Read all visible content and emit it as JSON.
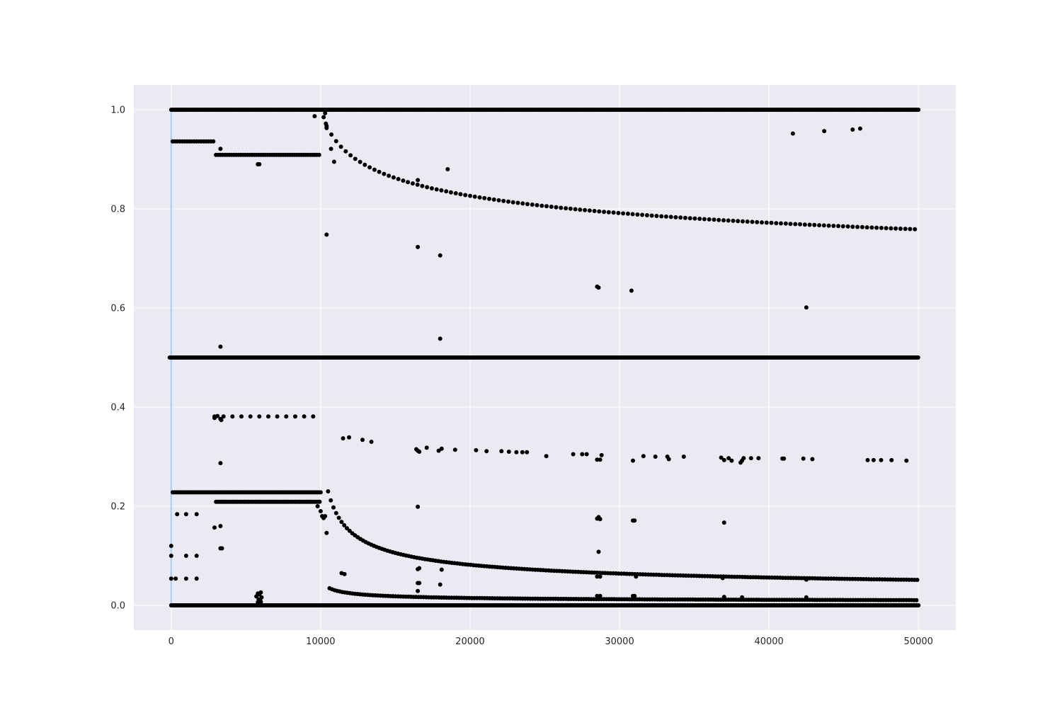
{
  "chart_data": {
    "type": "scatter",
    "title": "",
    "xlabel": "",
    "ylabel": "",
    "xlim": [
      -2500,
      52500
    ],
    "ylim": [
      -0.05,
      1.05
    ],
    "grid": true,
    "legend": "none",
    "x_ticks": [
      {
        "value": 0,
        "label": "0"
      },
      {
        "value": 10000,
        "label": "10000"
      },
      {
        "value": 20000,
        "label": "20000"
      },
      {
        "value": 30000,
        "label": "30000"
      },
      {
        "value": 40000,
        "label": "40000"
      },
      {
        "value": 50000,
        "label": "50000"
      }
    ],
    "y_ticks": [
      {
        "value": 0.0,
        "label": "0.0"
      },
      {
        "value": 0.2,
        "label": "0.2"
      },
      {
        "value": 0.4,
        "label": "0.4"
      },
      {
        "value": 0.6,
        "label": "0.6"
      },
      {
        "value": 0.8,
        "label": "0.8"
      },
      {
        "value": 1.0,
        "label": "1.0"
      }
    ],
    "colors": {
      "background": "#eaeaf2",
      "grid": "#ffffff",
      "points": "#000000",
      "reference_line": "#a6cdf2"
    },
    "reference_vline_x": 0,
    "constant_bands": [
      {
        "y": 1.0,
        "x_from": 0,
        "x_to": 50000
      },
      {
        "y": 0.5,
        "x_from": -100,
        "x_to": 50000
      },
      {
        "y": 0.0,
        "x_from": 0,
        "x_to": 50000
      }
    ],
    "step_runs": [
      {
        "y": 0.936,
        "x_from": 100,
        "x_to": 2900,
        "step": 160
      },
      {
        "y": 0.909,
        "x_from": 3000,
        "x_to": 10000,
        "step": 150
      },
      {
        "y": 0.228,
        "x_from": 100,
        "x_to": 10000,
        "step": 110
      },
      {
        "y": 0.209,
        "x_from": 3000,
        "x_to": 10000,
        "step": 110
      },
      {
        "y": 0.381,
        "x_from": 2900,
        "x_to": 10000,
        "step": 600
      }
    ],
    "curves": [
      {
        "a": 9.8,
        "b": -0.2,
        "x_from": 10400,
        "x_to": 50000,
        "step": 320
      },
      {
        "a": 0.9,
        "b": 0.006,
        "x_from": 10600,
        "x_to": 50000,
        "step": 170
      },
      {
        "a": 6.3,
        "b": 0.02,
        "x_from": 10500,
        "x_to": 50000,
        "step": 180
      }
    ],
    "points": [
      [
        9600,
        0.987
      ],
      [
        10200,
        0.985
      ],
      [
        10300,
        0.993
      ],
      [
        10350,
        0.972
      ],
      [
        10400,
        0.963
      ],
      [
        10700,
        0.921
      ],
      [
        10900,
        0.895
      ],
      [
        10400,
        0.748
      ],
      [
        3300,
        0.921
      ],
      [
        3300,
        0.522
      ],
      [
        5800,
        0.89
      ],
      [
        5900,
        0.89
      ],
      [
        16500,
        0.858
      ],
      [
        18500,
        0.88
      ],
      [
        18000,
        0.706
      ],
      [
        18000,
        0.538
      ],
      [
        16500,
        0.723
      ],
      [
        28500,
        0.643
      ],
      [
        28600,
        0.641
      ],
      [
        30800,
        0.635
      ],
      [
        42500,
        0.601
      ],
      [
        41600,
        0.952
      ],
      [
        43700,
        0.957
      ],
      [
        45600,
        0.96
      ],
      [
        46100,
        0.962
      ],
      [
        3100,
        0.382
      ],
      [
        2900,
        0.378
      ],
      [
        3300,
        0.376
      ],
      [
        3350,
        0.374
      ],
      [
        3300,
        0.287
      ],
      [
        3300,
        0.115
      ],
      [
        3400,
        0.115
      ],
      [
        2900,
        0.157
      ],
      [
        3300,
        0.16
      ],
      [
        0,
        0.12
      ],
      [
        0,
        0.1
      ],
      [
        1000,
        0.1
      ],
      [
        1700,
        0.1
      ],
      [
        0,
        0.054
      ],
      [
        300,
        0.054
      ],
      [
        1000,
        0.054
      ],
      [
        1700,
        0.054
      ],
      [
        400,
        0.184
      ],
      [
        1000,
        0.184
      ],
      [
        1700,
        0.184
      ],
      [
        11500,
        0.337
      ],
      [
        11900,
        0.339
      ],
      [
        12800,
        0.334
      ],
      [
        13400,
        0.33
      ],
      [
        16400,
        0.315
      ],
      [
        16500,
        0.312
      ],
      [
        16600,
        0.31
      ],
      [
        17100,
        0.318
      ],
      [
        17900,
        0.312
      ],
      [
        18100,
        0.316
      ],
      [
        19000,
        0.314
      ],
      [
        20400,
        0.313
      ],
      [
        21100,
        0.311
      ],
      [
        22100,
        0.311
      ],
      [
        22600,
        0.31
      ],
      [
        23100,
        0.309
      ],
      [
        23500,
        0.309
      ],
      [
        23800,
        0.309
      ],
      [
        25100,
        0.301
      ],
      [
        26900,
        0.305
      ],
      [
        27500,
        0.305
      ],
      [
        27800,
        0.305
      ],
      [
        28500,
        0.294
      ],
      [
        28700,
        0.294
      ],
      [
        28800,
        0.303
      ],
      [
        30900,
        0.292
      ],
      [
        31600,
        0.301
      ],
      [
        32400,
        0.3
      ],
      [
        33200,
        0.3
      ],
      [
        33300,
        0.295
      ],
      [
        34300,
        0.3
      ],
      [
        36800,
        0.298
      ],
      [
        37000,
        0.293
      ],
      [
        37300,
        0.297
      ],
      [
        37500,
        0.292
      ],
      [
        38100,
        0.288
      ],
      [
        38200,
        0.292
      ],
      [
        38300,
        0.297
      ],
      [
        38800,
        0.297
      ],
      [
        39300,
        0.297
      ],
      [
        40900,
        0.296
      ],
      [
        41000,
        0.296
      ],
      [
        42300,
        0.296
      ],
      [
        42900,
        0.295
      ],
      [
        46600,
        0.293
      ],
      [
        47000,
        0.293
      ],
      [
        47500,
        0.293
      ],
      [
        48200,
        0.293
      ],
      [
        49200,
        0.292
      ],
      [
        16500,
        0.199
      ],
      [
        28500,
        0.175
      ],
      [
        28600,
        0.178
      ],
      [
        28700,
        0.174
      ],
      [
        30900,
        0.171
      ],
      [
        31000,
        0.171
      ],
      [
        37000,
        0.167
      ],
      [
        28600,
        0.108
      ],
      [
        11400,
        0.065
      ],
      [
        11600,
        0.063
      ],
      [
        16500,
        0.073
      ],
      [
        16600,
        0.075
      ],
      [
        18100,
        0.072
      ],
      [
        16500,
        0.045
      ],
      [
        16600,
        0.045
      ],
      [
        18000,
        0.042
      ],
      [
        16500,
        0.029
      ],
      [
        28500,
        0.058
      ],
      [
        28700,
        0.058
      ],
      [
        31100,
        0.058
      ],
      [
        28500,
        0.019
      ],
      [
        28700,
        0.019
      ],
      [
        30900,
        0.019
      ],
      [
        31000,
        0.019
      ],
      [
        36900,
        0.055
      ],
      [
        37000,
        0.017
      ],
      [
        38200,
        0.016
      ],
      [
        42500,
        0.052
      ],
      [
        42500,
        0.016
      ],
      [
        5800,
        0.024
      ],
      [
        5900,
        0.022
      ],
      [
        6000,
        0.026
      ],
      [
        5700,
        0.018
      ],
      [
        5850,
        0.012
      ],
      [
        5950,
        0.01
      ],
      [
        6050,
        0.016
      ],
      [
        5800,
        0.006
      ],
      [
        6000,
        0.007
      ],
      [
        9800,
        0.2
      ],
      [
        10000,
        0.19
      ],
      [
        10100,
        0.18
      ],
      [
        10200,
        0.176
      ],
      [
        10300,
        0.18
      ],
      [
        10400,
        0.146
      ]
    ]
  }
}
